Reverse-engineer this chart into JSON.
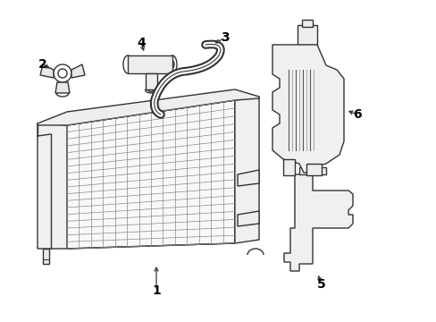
{
  "bg_color": "#ffffff",
  "line_color": "#333333",
  "line_width": 1.0,
  "figsize": [
    4.89,
    3.6
  ],
  "dpi": 100
}
